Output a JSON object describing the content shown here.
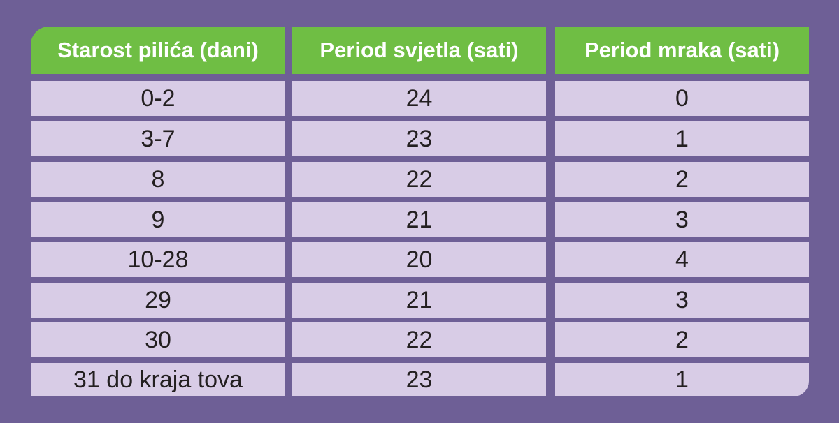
{
  "table": {
    "header": [
      "Starost pilića (dani)",
      "Period svjetla (sati)",
      "Period mraka (sati)"
    ],
    "rows": [
      [
        "0-2",
        "24",
        "0"
      ],
      [
        "3-7",
        "23",
        "1"
      ],
      [
        "8",
        "22",
        "2"
      ],
      [
        "9",
        "21",
        "3"
      ],
      [
        "10-28",
        "20",
        "4"
      ],
      [
        "29",
        "21",
        "3"
      ],
      [
        "30",
        "22",
        "2"
      ],
      [
        "31 do kraja tova",
        "23",
        "1"
      ]
    ]
  }
}
